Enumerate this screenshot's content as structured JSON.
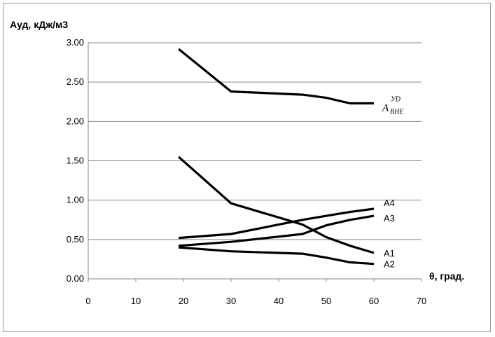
{
  "chart_data": {
    "type": "line",
    "title": "",
    "ylabel": "Aуд, кДж/м3",
    "xlabel": "θ, град.",
    "xlim": [
      0,
      70
    ],
    "ylim": [
      0,
      3.0
    ],
    "xticks": [
      0,
      10,
      20,
      30,
      40,
      50,
      60,
      70
    ],
    "yticks": [
      "0.00",
      "0.50",
      "1.00",
      "1.50",
      "2.00",
      "2.50",
      "3.00"
    ],
    "grid": "horizontal",
    "line_color": "#000000",
    "series": [
      {
        "label_main": "A",
        "label_sup": "УD",
        "label_sub": "ВНЕ",
        "x": [
          19,
          30,
          45,
          50,
          55,
          60
        ],
        "y": [
          2.92,
          2.38,
          2.34,
          2.3,
          2.23,
          2.23
        ]
      },
      {
        "label_main": "A1",
        "x": [
          19,
          30,
          45,
          50,
          55,
          60
        ],
        "y": [
          1.55,
          0.96,
          0.69,
          0.53,
          0.42,
          0.33
        ]
      },
      {
        "label_main": "A2",
        "x": [
          19,
          30,
          45,
          50,
          55,
          60
        ],
        "y": [
          0.4,
          0.35,
          0.32,
          0.27,
          0.21,
          0.19
        ]
      },
      {
        "label_main": "A3",
        "x": [
          19,
          30,
          45,
          50,
          55,
          60
        ],
        "y": [
          0.42,
          0.47,
          0.57,
          0.68,
          0.75,
          0.8
        ]
      },
      {
        "label_main": "A4",
        "x": [
          19,
          30,
          45,
          50,
          55,
          60
        ],
        "y": [
          0.52,
          0.57,
          0.75,
          0.8,
          0.85,
          0.89
        ]
      }
    ]
  }
}
